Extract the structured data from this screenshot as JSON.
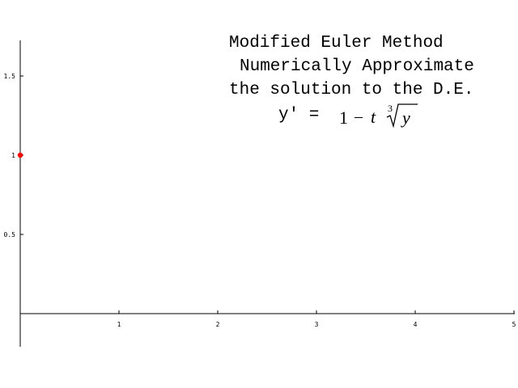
{
  "title_lines": [
    "Modified Euler Method",
    "Numerically Approximate",
    "the solution to the D.E."
  ],
  "equation": {
    "lhs": "y' =",
    "one": "1",
    "minus": "–",
    "t": "t",
    "root_index": "3",
    "radicand": "y"
  },
  "chart_data": {
    "type": "scatter",
    "x_ticks": [
      "1",
      "2",
      "3",
      "4",
      "5"
    ],
    "y_ticks": [
      "0.5",
      "1",
      "1.5"
    ],
    "xlim": [
      0,
      5
    ],
    "ylim": [
      0,
      1.5
    ],
    "series": [
      {
        "color": "#ff0000",
        "points": [
          {
            "x": 0,
            "y": 1
          }
        ]
      }
    ]
  }
}
